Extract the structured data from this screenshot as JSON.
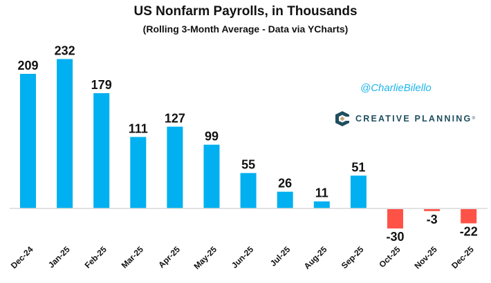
{
  "chart_data": {
    "type": "bar",
    "title": "US Nonfarm Payrolls, in Thousands",
    "subtitle": "(Rolling 3-Month Average - Data via YCharts)",
    "xlabel": "",
    "ylabel": "",
    "categories": [
      "Dec-24",
      "Jan-25",
      "Feb-25",
      "Mar-25",
      "Apr-25",
      "May-25",
      "Jun-25",
      "Jul-25",
      "Aug-25",
      "Sep-25",
      "Oct-25",
      "Nov-25",
      "Dec-25"
    ],
    "values": [
      209,
      232,
      179,
      111,
      127,
      99,
      55,
      26,
      11,
      51,
      -30,
      -3,
      -22
    ],
    "ylim": [
      -60,
      245
    ],
    "grid": false,
    "legend": "none",
    "colors": {
      "positive": "#00B0F0",
      "negative": "#FF5247",
      "baseline": "#d9d9d9"
    }
  },
  "annotations": {
    "handle": "@CharlieBilello",
    "brand_name": "CREATIVE PLANNING",
    "brand_mark": "®"
  },
  "brand_colors": {
    "logo_dark": "#1f4e5f",
    "logo_accent": "#c9a877",
    "handle": "#1fb4ec"
  }
}
